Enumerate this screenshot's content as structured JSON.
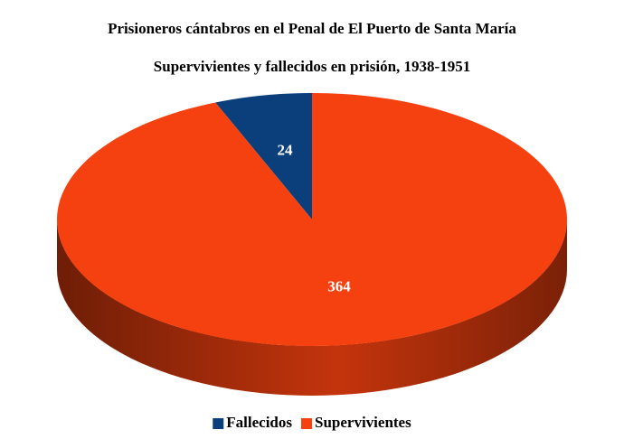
{
  "chart_data": {
    "type": "pie",
    "title": "Prisioneros cántabros en el Penal de El Puerto de Santa María",
    "subtitle": "Supervivientes y fallecidos en prisión, 1938-1951",
    "categories": [
      "Fallecidos",
      "Supervivientes"
    ],
    "values": [
      24,
      364
    ],
    "colors": [
      "#0b3f7c",
      "#f5410f"
    ],
    "legend": "bottom"
  }
}
